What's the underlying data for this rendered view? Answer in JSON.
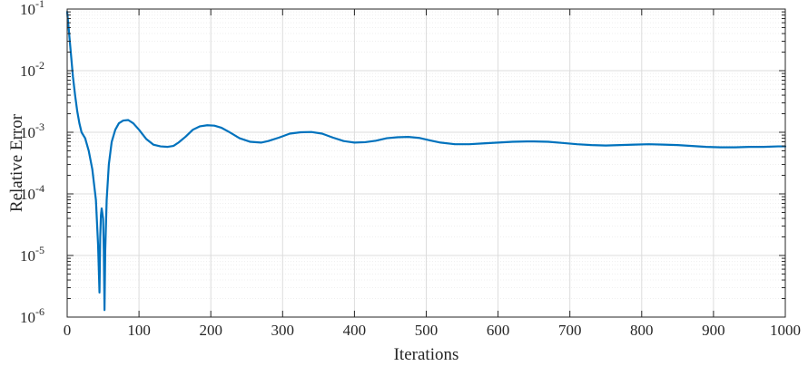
{
  "chart_data": {
    "type": "line",
    "xlabel": "Iterations",
    "ylabel": "Relative Error",
    "xlim": [
      0,
      1000
    ],
    "ylim": [
      1e-06,
      0.1
    ],
    "y_scale": "log",
    "grid": true,
    "minor_grid": true,
    "x_ticks": [
      0,
      100,
      200,
      300,
      400,
      500,
      600,
      700,
      800,
      900,
      1000
    ],
    "y_ticks": [
      {
        "value": 1e-06,
        "base": "10",
        "exp": "-6"
      },
      {
        "value": 1e-05,
        "base": "10",
        "exp": "-5"
      },
      {
        "value": 0.0001,
        "base": "10",
        "exp": "-4"
      },
      {
        "value": 0.001,
        "base": "10",
        "exp": "-3"
      },
      {
        "value": 0.01,
        "base": "10",
        "exp": "-2"
      },
      {
        "value": 0.1,
        "base": "10",
        "exp": "-1"
      }
    ],
    "series": [
      {
        "color": "#0072BD",
        "x": [
          0,
          2,
          5,
          8,
          11,
          14,
          17,
          20,
          25,
          30,
          35,
          40,
          43,
          45,
          46,
          47,
          48,
          50,
          51,
          52,
          53,
          55,
          58,
          62,
          67,
          72,
          78,
          85,
          92,
          100,
          110,
          120,
          130,
          140,
          148,
          155,
          165,
          175,
          185,
          195,
          205,
          215,
          225,
          240,
          255,
          270,
          280,
          295,
          310,
          325,
          340,
          355,
          370,
          385,
          400,
          415,
          430,
          445,
          460,
          475,
          490,
          505,
          520,
          540,
          560,
          580,
          600,
          620,
          640,
          650,
          670,
          690,
          710,
          730,
          750,
          770,
          790,
          810,
          830,
          850,
          870,
          890,
          910,
          930,
          950,
          970,
          990,
          1000
        ],
        "y": [
          0.09,
          0.05,
          0.02,
          0.008,
          0.004,
          0.0022,
          0.0014,
          0.001,
          0.0008,
          0.0005,
          0.00025,
          8e-05,
          1.5e-05,
          2.5e-06,
          2e-05,
          4.5e-05,
          5.8e-05,
          4e-05,
          1.2e-05,
          1.3e-06,
          1.2e-05,
          8e-05,
          0.0003,
          0.0007,
          0.0011,
          0.0014,
          0.00155,
          0.00158,
          0.0014,
          0.0011,
          0.00078,
          0.00063,
          0.00059,
          0.00058,
          0.0006,
          0.00068,
          0.00085,
          0.0011,
          0.00125,
          0.0013,
          0.00128,
          0.00118,
          0.00102,
          0.0008,
          0.0007,
          0.00068,
          0.00072,
          0.00082,
          0.00095,
          0.001,
          0.00101,
          0.00095,
          0.00082,
          0.00072,
          0.00068,
          0.00069,
          0.00073,
          0.0008,
          0.00083,
          0.00084,
          0.00081,
          0.00074,
          0.00068,
          0.00064,
          0.00064,
          0.00066,
          0.00068,
          0.0007,
          0.00071,
          0.00071,
          0.0007,
          0.00067,
          0.00064,
          0.00062,
          0.00061,
          0.00062,
          0.00063,
          0.00064,
          0.00063,
          0.00062,
          0.0006,
          0.00058,
          0.00057,
          0.00057,
          0.00058,
          0.00058,
          0.00059,
          0.00059
        ]
      }
    ]
  }
}
